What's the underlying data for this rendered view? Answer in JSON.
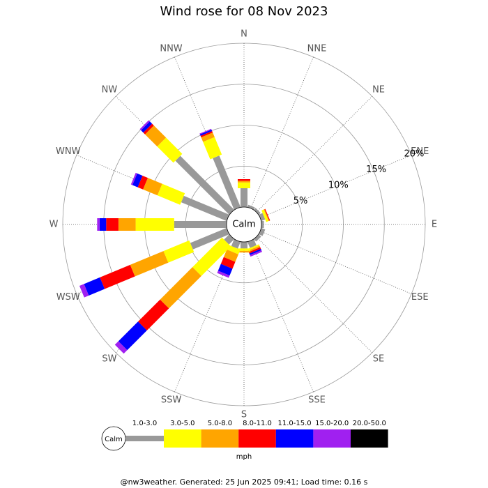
{
  "chart_data": {
    "type": "windrose",
    "title": "Wind rose for 08 Nov 2023",
    "directions": [
      "N",
      "NNE",
      "NE",
      "ENE",
      "E",
      "ESE",
      "SE",
      "SSE",
      "S",
      "SSW",
      "SW",
      "WSW",
      "W",
      "WNW",
      "NW",
      "NNW"
    ],
    "calm_label": "Calm",
    "rlim": [
      0,
      20
    ],
    "rticks": [
      {
        "value": 5,
        "label": "5%"
      },
      {
        "value": 10,
        "label": "10%"
      },
      {
        "value": 15,
        "label": "15%"
      },
      {
        "value": 20,
        "label": "20%"
      }
    ],
    "legend_unit": "mph",
    "series": [
      {
        "name": "1.0-3.0",
        "color": "#999999",
        "values": [
          2.3,
          0.3,
          0.3,
          0.5,
          0.3,
          0.5,
          0.4,
          0.8,
          0.8,
          0.9,
          0.9,
          4.8,
          6.4,
          6.0,
          9.3,
          6.8
        ]
      },
      {
        "name": "3.0-5.0",
        "color": "#ffff00",
        "values": [
          0.7,
          0,
          0,
          0.3,
          0,
          0,
          0,
          0.2,
          0.3,
          0.6,
          5.1,
          3.4,
          4.7,
          3.0,
          2.8,
          2.3
        ]
      },
      {
        "name": "5.0-8.0",
        "color": "#ffa500",
        "values": [
          0.2,
          0,
          0,
          0.1,
          0,
          0,
          0,
          0.2,
          0.2,
          1.0,
          5.6,
          4.4,
          2.1,
          1.9,
          2.1,
          0.6
        ]
      },
      {
        "name": "8.0-11.0",
        "color": "#ff0000",
        "values": [
          0.2,
          0,
          0,
          0.1,
          0,
          0,
          0,
          0.2,
          0,
          0.9,
          3.8,
          4.0,
          1.5,
          0.7,
          0.3,
          0.2
        ]
      },
      {
        "name": "11.0-15.0",
        "color": "#0000ff",
        "values": [
          0,
          0,
          0,
          0,
          0,
          0,
          0,
          0.2,
          0,
          0.9,
          3.4,
          2.1,
          0.8,
          0.7,
          0.4,
          0.2
        ]
      },
      {
        "name": "15.0-20.0",
        "color": "#a020f0",
        "values": [
          0,
          0,
          0,
          0,
          0,
          0,
          0,
          0.2,
          0,
          0.3,
          0.6,
          0.6,
          0.3,
          0.2,
          0.2,
          0.1
        ]
      },
      {
        "name": "20.0-50.0",
        "color": "#000000",
        "values": [
          0,
          0,
          0,
          0,
          0,
          0,
          0,
          0,
          0,
          0,
          0,
          0,
          0,
          0,
          0,
          0
        ]
      }
    ]
  },
  "footer": "@nw3weather. Generated: 25 Jun 2025 09:41; Load time: 0.16 s"
}
